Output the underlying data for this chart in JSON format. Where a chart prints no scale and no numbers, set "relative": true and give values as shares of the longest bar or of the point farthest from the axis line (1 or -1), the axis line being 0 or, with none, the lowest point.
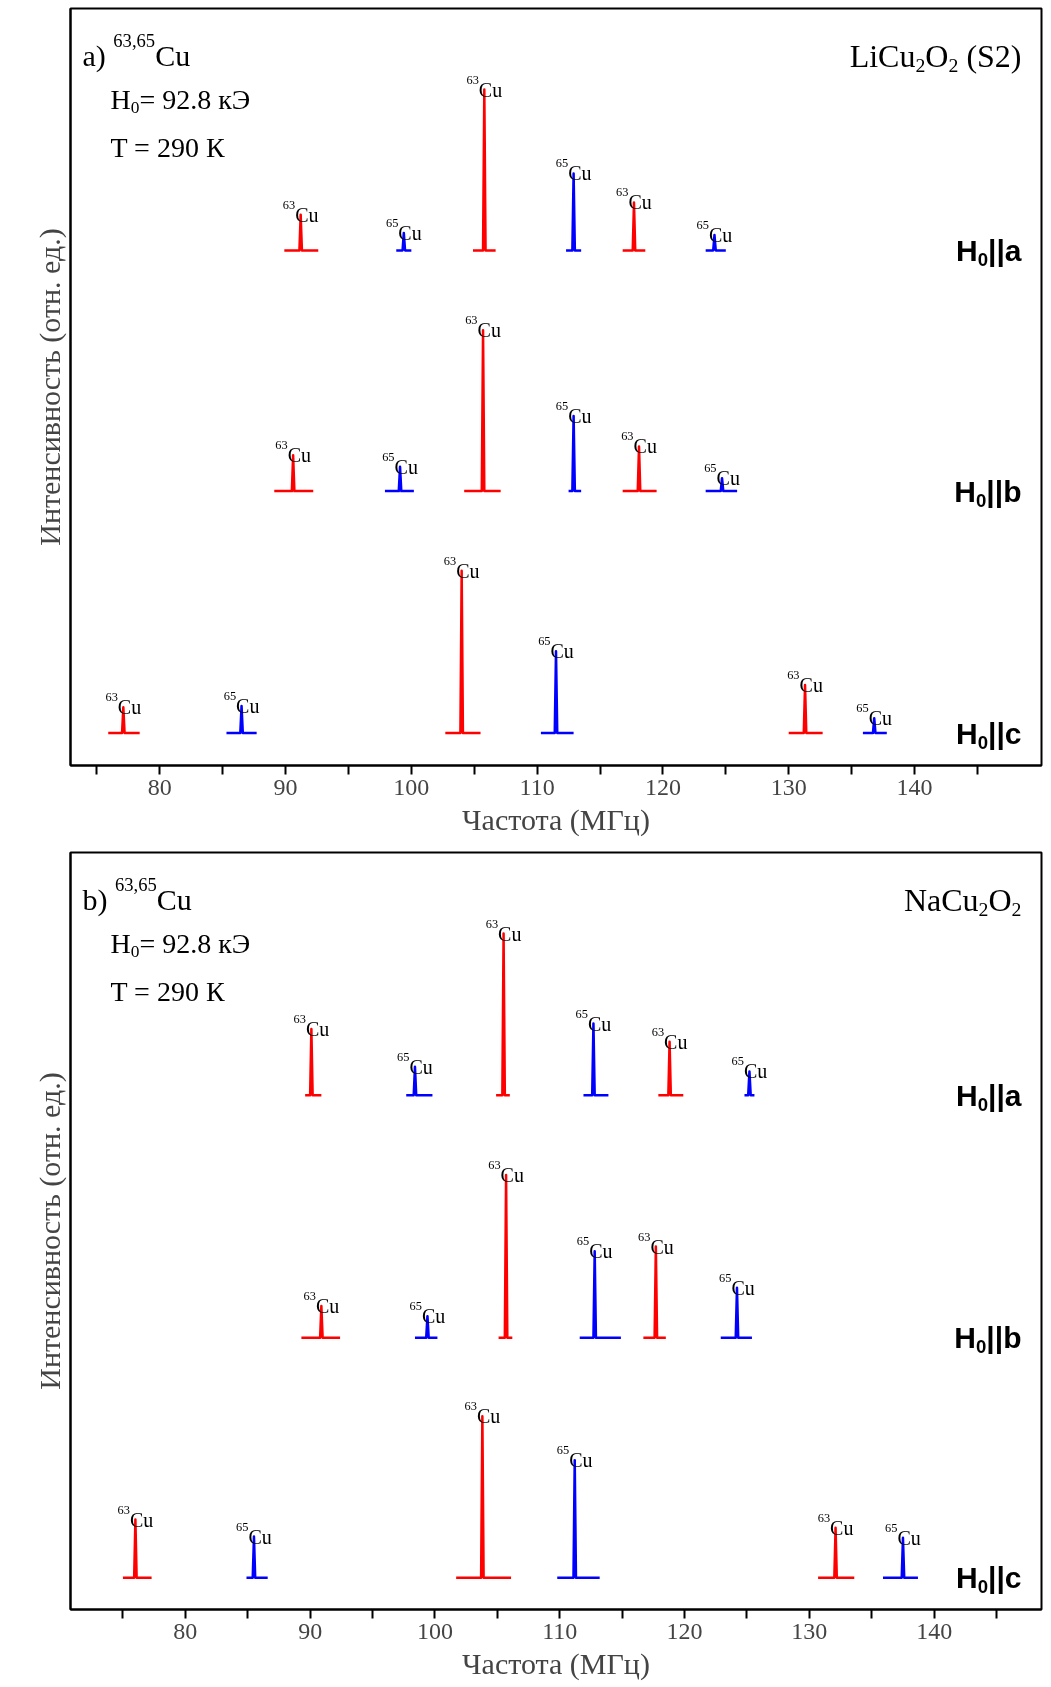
{
  "chart_data": [
    {
      "type": "line",
      "relative": true,
      "xlabel": "Частота (МГц)",
      "ylabel": "Интенсивность (отн. ед.)",
      "xlim": [
        72.9,
        150.1
      ],
      "xticks": [
        {
          "value": 75,
          "label": null
        },
        80,
        {
          "value": 85,
          "label": null
        },
        90,
        {
          "value": 95,
          "label": null
        },
        100,
        {
          "value": 105,
          "label": null
        },
        110,
        {
          "value": 115,
          "label": null
        },
        120,
        {
          "value": 125,
          "label": null
        },
        130,
        {
          "value": 135,
          "label": null
        },
        140,
        {
          "value": 145,
          "label": null
        }
      ],
      "grid": false,
      "series": [
        {
          "color": "#ff0000",
          "x": [
            89.9,
            91.1,
            91.2,
            91.3,
            92.6,
            null,
            104.9,
            105.7,
            105.8,
            105.9,
            106.7,
            null,
            116.8,
            117.6,
            117.7,
            117.8,
            118.6
          ],
          "values": [
            0.762,
            0.762,
            0.815,
            0.762,
            0.762,
            null,
            0.762,
            0.762,
            1.0,
            0.762,
            0.762,
            null,
            0.762,
            0.762,
            0.833,
            0.762,
            0.762
          ]
        },
        {
          "color": "#0000ff",
          "x": [
            98.8,
            99.3,
            99.4,
            99.5,
            100.0,
            null,
            112.3,
            112.8,
            112.9,
            113.0,
            113.5,
            null,
            123.4,
            124.0,
            124.1,
            124.2,
            125.0
          ],
          "values": [
            0.762,
            0.762,
            0.788,
            0.762,
            0.762,
            null,
            0.762,
            0.762,
            0.876,
            0.762,
            0.762,
            null,
            0.762,
            0.762,
            0.785,
            0.762,
            0.762
          ]
        },
        {
          "color": "#ff0000",
          "x": [
            89.1,
            90.5,
            90.6,
            90.7,
            92.2,
            null,
            104.2,
            105.6,
            105.7,
            105.8,
            107.1,
            null,
            116.8,
            118.0,
            118.1,
            118.2,
            119.5
          ],
          "values": [
            0.406,
            0.406,
            0.459,
            0.406,
            0.406,
            null,
            0.406,
            0.406,
            0.644,
            0.406,
            0.406,
            null,
            0.406,
            0.406,
            0.472,
            0.406,
            0.406
          ]
        },
        {
          "color": "#0000ff",
          "x": [
            97.9,
            99.0,
            99.1,
            99.2,
            100.2,
            null,
            112.5,
            112.8,
            112.9,
            113.0,
            113.5,
            null,
            123.4,
            124.6,
            124.7,
            124.8,
            125.9
          ],
          "values": [
            0.406,
            0.406,
            0.442,
            0.406,
            0.406,
            null,
            0.406,
            0.406,
            0.517,
            0.406,
            0.406,
            null,
            0.406,
            0.406,
            0.425,
            0.406,
            0.406
          ]
        },
        {
          "color": "#ff0000",
          "x": [
            75.9,
            77.0,
            77.1,
            77.2,
            78.4,
            null,
            102.7,
            103.9,
            104.0,
            104.1,
            105.5,
            null,
            130.0,
            131.2,
            131.3,
            131.4,
            132.7
          ],
          "values": [
            0.048,
            0.048,
            0.086,
            0.048,
            0.048,
            null,
            0.048,
            0.048,
            0.288,
            0.048,
            0.048,
            null,
            0.048,
            0.048,
            0.119,
            0.048,
            0.048
          ]
        },
        {
          "color": "#0000ff",
          "x": [
            85.3,
            86.4,
            86.5,
            86.6,
            87.7,
            null,
            110.3,
            111.4,
            111.5,
            111.6,
            112.9,
            null,
            135.9,
            136.7,
            136.8,
            136.9,
            137.8
          ],
          "values": [
            0.048,
            0.048,
            0.088,
            0.048,
            0.048,
            null,
            0.048,
            0.048,
            0.169,
            0.048,
            0.048,
            null,
            0.048,
            0.048,
            0.07,
            0.048,
            0.048
          ]
        }
      ],
      "annotations": [
        "a) $^{63,65}$Cu",
        "H$_{0}$= 92.8 кЭ",
        "T = 290 К",
        "LiCu$_{2}$O$_{2}$ (S2)",
        "H$_{0}$||a",
        "H$_{0}$||b",
        "H$_{0}$||c",
        "$^{63}$Cu",
        "$^{63}$Cu",
        "$^{63}$Cu",
        "$^{65}$Cu",
        "$^{65}$Cu",
        "$^{65}$Cu",
        "$^{63}$Cu",
        "$^{63}$Cu",
        "$^{63}$Cu",
        "$^{65}$Cu",
        "$^{65}$Cu",
        "$^{65}$Cu",
        "$^{63}$Cu",
        "$^{63}$Cu",
        "$^{63}$Cu",
        "$^{65}$Cu",
        "$^{65}$Cu",
        "$^{65}$Cu"
      ]
    },
    {
      "type": "line",
      "relative": true,
      "xlabel": "Частота (МГц)",
      "ylabel": "Интенсивность (отн. ед.)",
      "xlim": [
        70.8,
        148.6
      ],
      "xticks": [
        {
          "value": 75,
          "label": null
        },
        80,
        {
          "value": 85,
          "label": null
        },
        90,
        {
          "value": 95,
          "label": null
        },
        100,
        {
          "value": 105,
          "label": null
        },
        110,
        {
          "value": 115,
          "label": null
        },
        120,
        {
          "value": 125,
          "label": null
        },
        130,
        {
          "value": 135,
          "label": null
        },
        140,
        {
          "value": 145,
          "label": null
        }
      ],
      "grid": false,
      "series": [
        {
          "color": "#ff0000",
          "x": [
            89.6,
            90.0,
            90.1,
            90.2,
            90.9,
            null,
            104.9,
            105.4,
            105.5,
            105.6,
            106.0,
            null,
            117.9,
            118.7,
            118.8,
            118.9,
            119.9
          ],
          "values": [
            0.761,
            0.761,
            0.859,
            0.761,
            0.761,
            null,
            0.761,
            0.761,
            1.0,
            0.761,
            0.761,
            null,
            0.761,
            0.761,
            0.84,
            0.761,
            0.761
          ]
        },
        {
          "color": "#0000ff",
          "x": [
            97.7,
            98.3,
            98.4,
            98.5,
            99.8,
            null,
            111.9,
            112.6,
            112.7,
            112.8,
            113.9,
            null,
            124.8,
            125.1,
            125.2,
            125.3,
            125.6
          ],
          "values": [
            0.761,
            0.761,
            0.803,
            0.761,
            0.761,
            null,
            0.761,
            0.761,
            0.867,
            0.761,
            0.761,
            null,
            0.761,
            0.761,
            0.796,
            0.761,
            0.761
          ]
        },
        {
          "color": "#ff0000",
          "x": [
            89.3,
            90.8,
            90.9,
            91.0,
            92.4,
            null,
            105.1,
            105.6,
            105.7,
            105.8,
            106.2,
            null,
            116.7,
            117.6,
            117.7,
            117.8,
            118.5
          ],
          "values": [
            0.402,
            0.402,
            0.449,
            0.402,
            0.402,
            null,
            0.402,
            0.402,
            0.643,
            0.402,
            0.402,
            null,
            0.402,
            0.402,
            0.537,
            0.402,
            0.402
          ]
        },
        {
          "color": "#0000ff",
          "x": [
            98.4,
            99.3,
            99.4,
            99.5,
            100.2,
            null,
            111.6,
            112.7,
            112.8,
            112.9,
            114.9,
            null,
            122.9,
            124.1,
            124.2,
            124.3,
            125.4
          ],
          "values": [
            0.402,
            0.402,
            0.434,
            0.402,
            0.402,
            null,
            0.402,
            0.402,
            0.53,
            0.402,
            0.402,
            null,
            0.402,
            0.402,
            0.476,
            0.402,
            0.402
          ]
        },
        {
          "color": "#ff0000",
          "x": [
            75.0,
            75.9,
            76.0,
            76.1,
            77.3,
            null,
            101.7,
            103.7,
            103.8,
            103.9,
            106.1,
            null,
            130.7,
            132.0,
            132.1,
            132.2,
            133.6
          ],
          "values": [
            0.047,
            0.047,
            0.133,
            0.047,
            0.047,
            null,
            0.047,
            0.047,
            0.286,
            0.047,
            0.047,
            null,
            0.047,
            0.047,
            0.121,
            0.047,
            0.047
          ]
        },
        {
          "color": "#0000ff",
          "x": [
            84.9,
            85.4,
            85.5,
            85.6,
            86.6,
            null,
            109.8,
            111.1,
            111.2,
            111.3,
            113.2,
            null,
            135.9,
            137.4,
            137.5,
            137.6,
            138.7
          ],
          "values": [
            0.047,
            0.047,
            0.108,
            0.047,
            0.047,
            null,
            0.047,
            0.047,
            0.221,
            0.047,
            0.047,
            null,
            0.047,
            0.047,
            0.106,
            0.047,
            0.047
          ]
        }
      ],
      "annotations": [
        "b) $^{63,65}$Cu",
        "H$_{0}$= 92.8 кЭ",
        "T = 290 К",
        "NaCu$_{2}$O$_{2}$",
        "H$_{0}$||a",
        "H$_{0}$||b",
        "H$_{0}$||c",
        "$^{63}$Cu",
        "$^{63}$Cu",
        "$^{63}$Cu",
        "$^{65}$Cu",
        "$^{65}$Cu",
        "$^{65}$Cu",
        "$^{63}$Cu",
        "$^{63}$Cu",
        "$^{63}$Cu",
        "$^{65}$Cu",
        "$^{65}$Cu",
        "$^{65}$Cu",
        "$^{63}$Cu",
        "$^{63}$Cu",
        "$^{63}$Cu",
        "$^{65}$Cu",
        "$^{65}$Cu",
        "$^{65}$Cu"
      ]
    }
  ]
}
